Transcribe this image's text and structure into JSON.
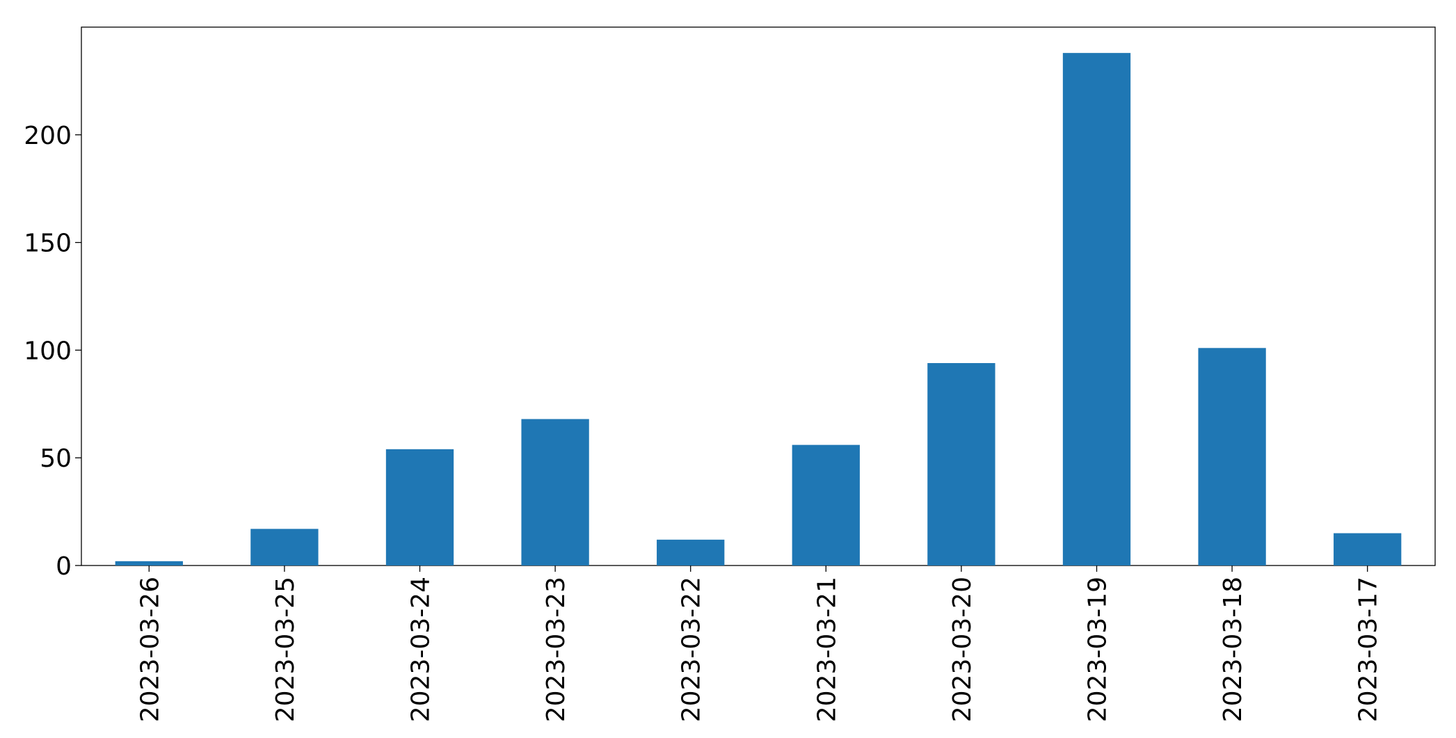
{
  "chart_data": {
    "type": "bar",
    "categories": [
      "2023-03-26",
      "2023-03-25",
      "2023-03-24",
      "2023-03-23",
      "2023-03-22",
      "2023-03-21",
      "2023-03-20",
      "2023-03-19",
      "2023-03-18",
      "2023-03-17"
    ],
    "values": [
      2,
      17,
      54,
      68,
      12,
      56,
      94,
      238,
      101,
      15
    ],
    "color": "#1f77b4",
    "ylim": [
      0,
      250
    ],
    "yticks": [
      0,
      50,
      100,
      150,
      200
    ],
    "grid": false
  }
}
